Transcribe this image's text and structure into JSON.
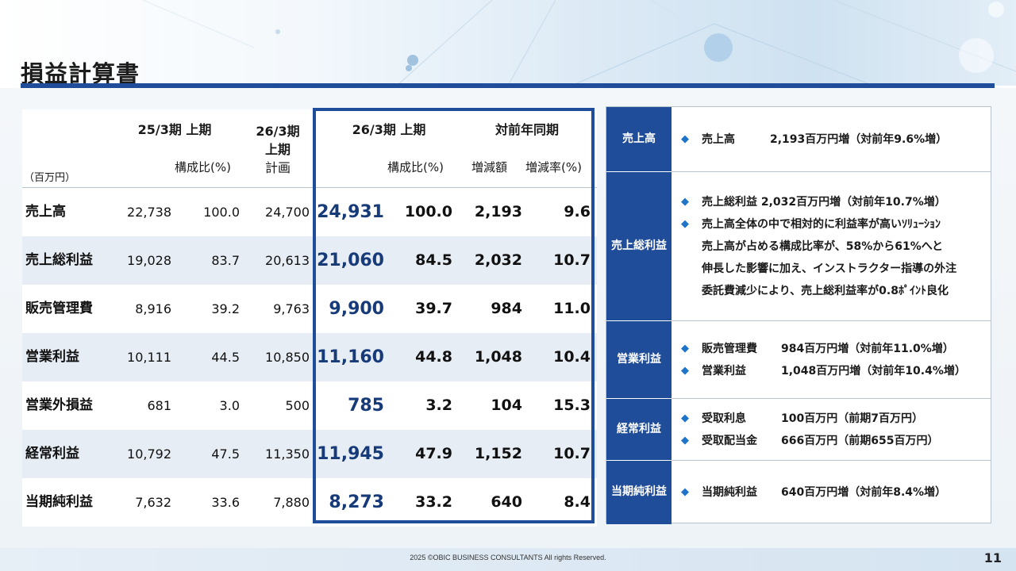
{
  "page": {
    "title": "損益計算書",
    "footer": "2025 ©OBIC BUSINESS CONSULTANTS All rights Reserved.",
    "page_number": "11"
  },
  "colors": {
    "brand": "#1f4d99",
    "row_shade": "#e7edf4",
    "highlight_num": "#173a78",
    "bullet": "#1f73c8"
  },
  "table": {
    "unit": "（百万円）",
    "prev_period": "25/3期 上期",
    "plan_period_line1": "26/3期",
    "plan_period_line2": "上期",
    "plan_period_line3": "計画",
    "curr_period": "26/3期 上期",
    "yoy": "対前年同期",
    "ratio_label_prev": "構成比(%)",
    "ratio_label_curr": "構成比(%)",
    "change_amount_label": "増減額",
    "change_rate_label": "増減率(%)",
    "rows": [
      {
        "label": "売上高",
        "prev": "22,738",
        "prev_ratio": "100.0",
        "plan": "24,700",
        "curr": "24,931",
        "curr_ratio": "100.0",
        "change": "2,193",
        "rate": "9.6"
      },
      {
        "label": "売上総利益",
        "prev": "19,028",
        "prev_ratio": "83.7",
        "plan": "20,613",
        "curr": "21,060",
        "curr_ratio": "84.5",
        "change": "2,032",
        "rate": "10.7"
      },
      {
        "label": "販売管理費",
        "prev": "8,916",
        "prev_ratio": "39.2",
        "plan": "9,763",
        "curr": "9,900",
        "curr_ratio": "39.7",
        "change": "984",
        "rate": "11.0"
      },
      {
        "label": "営業利益",
        "prev": "10,111",
        "prev_ratio": "44.5",
        "plan": "10,850",
        "curr": "11,160",
        "curr_ratio": "44.8",
        "change": "1,048",
        "rate": "10.4"
      },
      {
        "label": "営業外損益",
        "prev": "681",
        "prev_ratio": "3.0",
        "plan": "500",
        "curr": "785",
        "curr_ratio": "3.2",
        "change": "104",
        "rate": "15.3"
      },
      {
        "label": "経常利益",
        "prev": "10,792",
        "prev_ratio": "47.5",
        "plan": "11,350",
        "curr": "11,945",
        "curr_ratio": "47.9",
        "change": "1,152",
        "rate": "10.7"
      },
      {
        "label": "当期純利益",
        "prev": "7,632",
        "prev_ratio": "33.6",
        "plan": "7,880",
        "curr": "8,273",
        "curr_ratio": "33.2",
        "change": "640",
        "rate": "8.4"
      }
    ]
  },
  "panel": {
    "sections": [
      {
        "tag_line1": "売上高",
        "tag_line2": "",
        "bullets": [
          {
            "name": "売上高",
            "text": "2,193百万円増（対前年9.6%増）"
          }
        ]
      },
      {
        "tag_line1": "売上",
        "tag_line2": "総利益",
        "bullets": [
          {
            "text": "売上総利益 2,032百万円増（対前年10.7%増）"
          },
          {
            "text": "売上高全体の中で相対的に利益率が高いｿﾘｭｰｼｮﾝ"
          }
        ],
        "continuation": [
          "売上高が占める構成比率が、58%から61%へと",
          "伸長した影響に加え、インストラクター指導の外注",
          "委託費減少により、売上総利益率が0.8ﾎﾟｲﾝﾄ良化"
        ]
      },
      {
        "tag_line1": "営業",
        "tag_line2": "利益",
        "bullets": [
          {
            "name": "販売管理費",
            "text": "984百万円増（対前年11.0%増）"
          },
          {
            "name": "営業利益",
            "text": "1,048百万円増（対前年10.4%増）"
          }
        ]
      },
      {
        "tag_line1": "経常",
        "tag_line2": "利益",
        "bullets": [
          {
            "name": "受取利息",
            "text": "100百万円（前期7百万円）"
          },
          {
            "name": "受取配当金",
            "text": "666百万円（前期655百万円）"
          }
        ]
      },
      {
        "tag_line1": "当期",
        "tag_line2": "純利益",
        "bullets": [
          {
            "name": "当期純利益",
            "text": "640百万円増（対前年8.4%増）"
          }
        ]
      }
    ]
  }
}
